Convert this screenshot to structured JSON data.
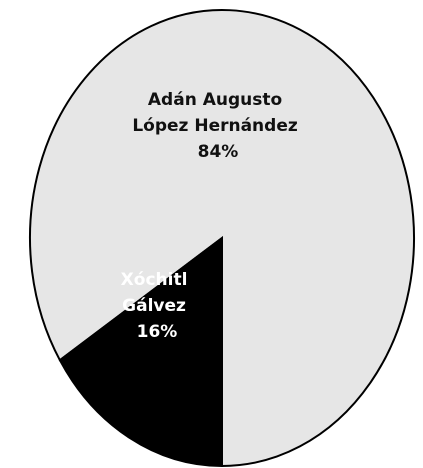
{
  "chart_data": {
    "type": "pie",
    "title": "",
    "slices": [
      {
        "label_lines": [
          "Adán Augusto",
          "López Hernández"
        ],
        "value": 84,
        "value_label": "84%",
        "color": "#e6e6e6",
        "text_color": "#111111"
      },
      {
        "label_lines": [
          "Xóchitl",
          "Gálvez"
        ],
        "value": 16,
        "value_label": "16%",
        "color": "#000000",
        "text_color": "#ffffff"
      }
    ],
    "legend": "none"
  }
}
